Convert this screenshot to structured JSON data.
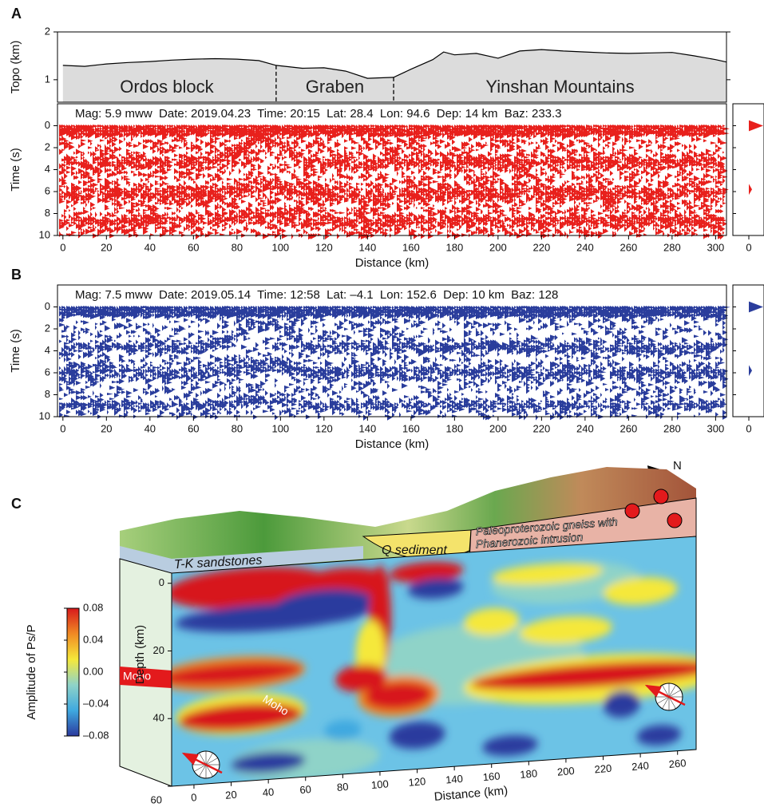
{
  "chart_data": [
    {
      "type": "line",
      "panel": "A",
      "ylabel": "Topo (km)",
      "xlim": [
        -2.5,
        305
      ],
      "ylim": [
        0.53,
        2
      ],
      "yticks": [
        1,
        2
      ],
      "x": [
        0,
        10,
        20,
        30,
        40,
        50,
        60,
        70,
        80,
        90,
        98,
        110,
        120,
        130,
        140,
        152,
        160,
        170,
        175,
        180,
        190,
        200,
        210,
        220,
        230,
        240,
        250,
        260,
        270,
        280,
        290,
        300,
        305
      ],
      "values": [
        1.3,
        1.28,
        1.33,
        1.36,
        1.38,
        1.41,
        1.43,
        1.44,
        1.43,
        1.4,
        1.3,
        1.24,
        1.25,
        1.18,
        1.03,
        1.05,
        1.22,
        1.42,
        1.58,
        1.52,
        1.55,
        1.45,
        1.6,
        1.63,
        1.6,
        1.58,
        1.56,
        1.55,
        1.56,
        1.57,
        1.5,
        1.42,
        1.37
      ],
      "color": "#000000",
      "fill": "#dcdcdc",
      "boundaries": [
        98,
        152
      ],
      "regions": [
        "Ordos block",
        "Graben",
        "Yinshan Mountains"
      ]
    },
    {
      "type": "seismic",
      "header": "Mag: 5.9 mww  Date: 2019.04.23  Time: 20:15  Lat: 28.4  Lon: 94.6  Dep: 14 km  Baz: 233.3",
      "ylabel": "Time (s)",
      "xlabel": "Distance (km)",
      "xlim": [
        -2.5,
        305
      ],
      "ylim": [
        -2,
        10
      ],
      "yticks": [
        0,
        2,
        4,
        6,
        8,
        10
      ],
      "xticks": [
        0,
        20,
        40,
        60,
        80,
        100,
        120,
        140,
        160,
        180,
        200,
        220,
        240,
        260,
        280,
        300
      ],
      "color": "#e8201c",
      "side_ticks": [
        0
      ]
    },
    {
      "type": "seismic",
      "panel": "B",
      "header": "Mag: 7.5 mww  Date: 2019.05.14  Time: 12:58  Lat: –4.1  Lon: 152.6  Dep: 10 km  Baz: 128",
      "ylabel": "Time (s)",
      "xlabel": "Distance (km)",
      "xlim": [
        -2.5,
        305
      ],
      "ylim": [
        -2,
        10
      ],
      "yticks": [
        0,
        2,
        4,
        6,
        8,
        10
      ],
      "xticks": [
        0,
        20,
        40,
        60,
        80,
        100,
        120,
        140,
        160,
        180,
        200,
        220,
        240,
        260,
        280,
        300
      ],
      "color": "#2a3d9c",
      "side_ticks": [
        0
      ]
    },
    {
      "type": "section",
      "panel": "C",
      "north": "N",
      "sediment": "Q sediment",
      "basement": [
        "Paleoproterozoic gneiss with",
        "Phanerozoic intrusion"
      ],
      "sandstone": "T-K sandstones",
      "moho_labels": [
        "Moho",
        "Moho"
      ],
      "ylabel": "Depth (km)",
      "ylim": [
        -3,
        60
      ],
      "yticks": [
        0,
        20,
        40,
        60
      ],
      "xlabel": "Distance (km)",
      "xlim": [
        -12,
        270
      ],
      "xticks": [
        0,
        20,
        40,
        60,
        80,
        100,
        120,
        140,
        160,
        180,
        200,
        220,
        240,
        260
      ],
      "colorbar_label": "Amplitude of Ps/P",
      "clim": [
        -0.08,
        0.08
      ],
      "cticks": [
        0.08,
        0.04,
        {
          "value": 0,
          "label": "0.00"
        },
        {
          "value": -0.04,
          "label": "–0.04"
        },
        {
          "value": -0.08,
          "label": "–0.08"
        }
      ],
      "colormap": [
        "#2b3a9e",
        "#3fa9e0",
        "#8fd3c8",
        "#f5e83a",
        "#f08a24",
        "#d7191c"
      ]
    }
  ]
}
